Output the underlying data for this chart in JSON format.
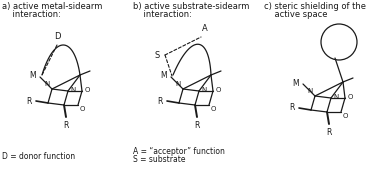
{
  "bg_color": "#ffffff",
  "line_color": "#1a1a1a",
  "panel_a": {
    "title_line1": "a) active metal-sidearm",
    "title_line2": "    interaction:",
    "footer": "D = donor function"
  },
  "panel_b": {
    "title_line1": "b) active substrate-sidearm",
    "title_line2": "    interaction:",
    "footer_line1": "A = “acceptor” function",
    "footer_line2": "S = substrate"
  },
  "panel_c": {
    "title_line1": "c) steric shielding of the",
    "title_line2": "    active space"
  }
}
